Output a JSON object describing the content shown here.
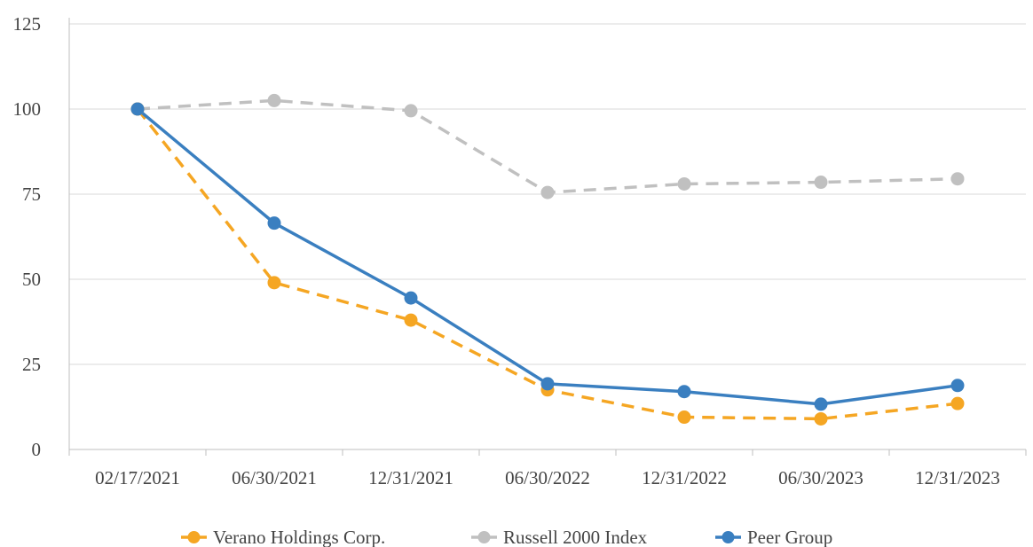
{
  "chart_data": {
    "type": "line",
    "categories": [
      "02/17/2021",
      "06/30/2021",
      "12/31/2021",
      "06/30/2022",
      "12/31/2022",
      "06/30/2023",
      "12/31/2023"
    ],
    "ylim": [
      0,
      125
    ],
    "yticks": [
      0,
      25,
      50,
      75,
      100,
      125
    ],
    "grid": true,
    "legend_position": "bottom",
    "series": [
      {
        "name": "Verano Holdings Corp.",
        "color": "#F5A623",
        "dashed": true,
        "values": [
          100,
          49,
          38,
          17.5,
          9.5,
          9,
          13.5
        ]
      },
      {
        "name": "Russell 2000 Index",
        "color": "#C0C0C0",
        "dashed": true,
        "values": [
          100,
          102.5,
          99.5,
          75.5,
          78,
          78.5,
          79.5
        ]
      },
      {
        "name": "Peer Group",
        "color": "#3A7FC0",
        "dashed": false,
        "values": [
          100,
          66.5,
          44.5,
          19.3,
          17,
          13.3,
          18.8
        ]
      }
    ]
  }
}
